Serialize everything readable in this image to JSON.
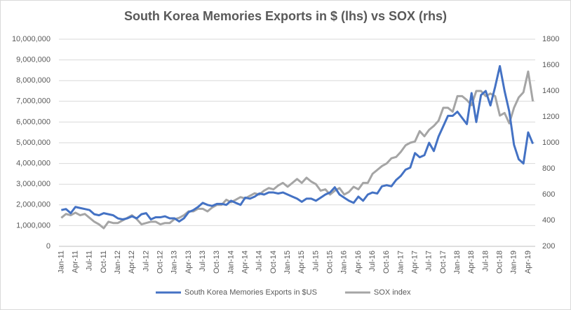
{
  "chart_data": {
    "type": "line",
    "title": "South Korea Memories Exports in $ (lhs) vs SOX (rhs)",
    "categories": [
      "Jan-11",
      null,
      null,
      "Apr-11",
      null,
      null,
      "Jul-11",
      null,
      null,
      "Oct-11",
      null,
      null,
      "Jan-12",
      null,
      null,
      "Apr-12",
      null,
      null,
      "Jul-12",
      null,
      null,
      "Oct-12",
      null,
      null,
      "Jan-13",
      null,
      null,
      "Apr-13",
      null,
      null,
      "Jul-13",
      null,
      null,
      "Oct-13",
      null,
      null,
      "Jan-14",
      null,
      null,
      "Apr-14",
      null,
      null,
      "Jul-14",
      null,
      null,
      "Oct-14",
      null,
      null,
      "Jan-15",
      null,
      null,
      "Apr-15",
      null,
      null,
      "Jul-15",
      null,
      null,
      "Oct-15",
      null,
      null,
      "Jan-16",
      null,
      null,
      "Apr-16",
      null,
      null,
      "Jul-16",
      null,
      null,
      "Oct-16",
      null,
      null,
      "Jan-17",
      null,
      null,
      "Apr-17",
      null,
      null,
      "Jul-17",
      null,
      null,
      "Oct-17",
      null,
      null,
      "Jan-18",
      null,
      null,
      "Apr-18",
      null,
      null,
      "Jul-18",
      null,
      null,
      "Oct-18",
      null,
      null,
      "Jan-19",
      null,
      null,
      "Apr-19",
      null
    ],
    "series": [
      {
        "name": "South Korea Memories Exports in $US",
        "color": "#4472c4",
        "axis": "y",
        "values": [
          1750000,
          1800000,
          1600000,
          1900000,
          1850000,
          1800000,
          1750000,
          1550000,
          1500000,
          1600000,
          1550000,
          1500000,
          1350000,
          1300000,
          1350000,
          1450000,
          1350000,
          1550000,
          1600000,
          1300000,
          1400000,
          1400000,
          1450000,
          1350000,
          1350000,
          1200000,
          1350000,
          1650000,
          1750000,
          1900000,
          2100000,
          2000000,
          1950000,
          2050000,
          2050000,
          2000000,
          2200000,
          2100000,
          2000000,
          2350000,
          2300000,
          2400000,
          2550000,
          2500000,
          2600000,
          2600000,
          2550000,
          2600000,
          2500000,
          2400000,
          2300000,
          2150000,
          2300000,
          2300000,
          2200000,
          2350000,
          2500000,
          2600000,
          2850000,
          2500000,
          2350000,
          2200000,
          2100000,
          2400000,
          2200000,
          2500000,
          2600000,
          2550000,
          2900000,
          2950000,
          2900000,
          3200000,
          3400000,
          3700000,
          3800000,
          4500000,
          4300000,
          4400000,
          5000000,
          4600000,
          5300000,
          5800000,
          6300000,
          6300000,
          6500000,
          6200000,
          5900000,
          7400000,
          6000000,
          7300000,
          7500000,
          6800000,
          7700000,
          8700000,
          7500000,
          6500000,
          4900000,
          4200000,
          4000000,
          5500000,
          4950000
        ]
      },
      {
        "name": "SOX index",
        "color": "#a5a5a5",
        "axis": "y2",
        "values": [
          420,
          450,
          440,
          460,
          440,
          450,
          420,
          390,
          370,
          340,
          390,
          380,
          380,
          400,
          420,
          440,
          410,
          370,
          380,
          390,
          390,
          370,
          380,
          380,
          410,
          420,
          440,
          470,
          470,
          490,
          490,
          470,
          500,
          520,
          520,
          560,
          540,
          560,
          580,
          570,
          590,
          610,
          600,
          630,
          650,
          640,
          670,
          690,
          660,
          690,
          720,
          690,
          730,
          700,
          680,
          630,
          640,
          600,
          630,
          650,
          600,
          620,
          660,
          640,
          690,
          690,
          760,
          790,
          820,
          840,
          880,
          890,
          930,
          980,
          1000,
          1010,
          1090,
          1050,
          1100,
          1130,
          1170,
          1270,
          1270,
          1240,
          1360,
          1360,
          1330,
          1290,
          1400,
          1400,
          1360,
          1380,
          1360,
          1210,
          1230,
          1150,
          1270,
          1350,
          1390,
          1550,
          1320
        ]
      }
    ],
    "ylim": [
      0,
      10000000
    ],
    "yticks": [
      0,
      {
        "value": 1000000,
        "label": "1,000,000"
      },
      {
        "value": 2000000,
        "label": "2,000,000"
      },
      {
        "value": 3000000,
        "label": "3,000,000"
      },
      {
        "value": 4000000,
        "label": "4,000,000"
      },
      {
        "value": 5000000,
        "label": "5,000,000"
      },
      {
        "value": 6000000,
        "label": "6,000,000"
      },
      {
        "value": 7000000,
        "label": "7,000,000"
      },
      {
        "value": 8000000,
        "label": "8,000,000"
      },
      {
        "value": 9000000,
        "label": "9,000,000"
      },
      {
        "value": 10000000,
        "label": "10,000,000"
      }
    ],
    "y2lim": [
      200,
      1800
    ],
    "y2ticks": [
      200,
      400,
      600,
      800,
      1000,
      1200,
      1400,
      1600,
      1800
    ],
    "grid": true,
    "legend": "bottom"
  }
}
